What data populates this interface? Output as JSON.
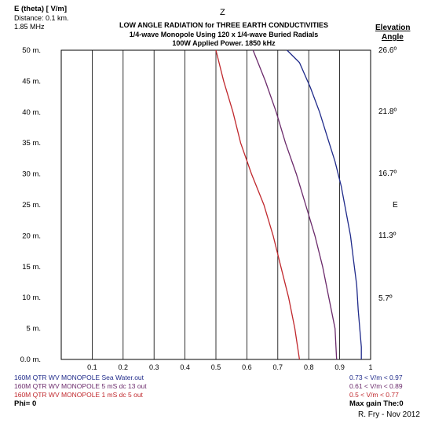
{
  "header": {
    "quantity": "E (theta) [ V/m]",
    "distance": "Distance: 0.1 km.",
    "frequency": "1.85 MHz",
    "z_label": "Z",
    "title_line1": "LOW ANGLE RADIATION for THREE EARTH CONDUCTIVITIES",
    "title_line2": "1/4-wave Monopole Using 120 x 1/4-wave Buried Radials",
    "title_line3": "100W Applied Power. 1850 kHz"
  },
  "elevation": {
    "heading1": "Elevation",
    "heading2": "Angle",
    "labels": [
      "26.6º",
      "21.8º",
      "16.7º",
      "11.3º",
      "5.7º"
    ],
    "e_label": "E"
  },
  "legend": {
    "phi": "Phi= 0",
    "max_gain": "Max gain The:0",
    "items": [
      {
        "name": "160M QTR WV MONOPOLE Sea Water.out",
        "range": "0.73 <  V/m < 0.97",
        "color": "#1f2a8a"
      },
      {
        "name": "160M QTR WV MONOPOLE 5 mS dc 13 out",
        "range": "0.61 <  V/m < 0.89",
        "color": "#6b2a6b"
      },
      {
        "name": "160M QTR WV MONOPOLE 1 mS dc 5 out",
        "range": "0.5 <  V/m < 0.77",
        "color": "#c0282d"
      }
    ]
  },
  "credit": "R. Fry - Nov 2012",
  "chart_data": {
    "type": "line",
    "xlim": [
      0,
      1.0
    ],
    "ylim": [
      0,
      50
    ],
    "x_ticks": [
      "0.1",
      "0.2",
      "0.3",
      "0.4",
      "0.5",
      "0.6",
      "0.7",
      "0.8",
      "0.9",
      "1"
    ],
    "y_ticks": [
      "0.0 m.",
      "5 m.",
      "10 m.",
      "15 m.",
      "20 m.",
      "25 m.",
      "30 m.",
      "35 m.",
      "40 m.",
      "45 m.",
      "50 m."
    ],
    "grid": true,
    "series": [
      {
        "name": "160M QTR WV MONOPOLE Sea Water.out",
        "color": "#1f2a8a",
        "points": [
          [
            0.97,
            0
          ],
          [
            0.97,
            2
          ],
          [
            0.965,
            5
          ],
          [
            0.96,
            8
          ],
          [
            0.955,
            12
          ],
          [
            0.945,
            16
          ],
          [
            0.935,
            20
          ],
          [
            0.92,
            24
          ],
          [
            0.905,
            28
          ],
          [
            0.885,
            32
          ],
          [
            0.86,
            36
          ],
          [
            0.835,
            40
          ],
          [
            0.805,
            44
          ],
          [
            0.77,
            48
          ],
          [
            0.73,
            50
          ]
        ]
      },
      {
        "name": "160M QTR WV MONOPOLE 5 mS dc 13 out",
        "color": "#6b2a6b",
        "points": [
          [
            0.89,
            0
          ],
          [
            0.885,
            5
          ],
          [
            0.865,
            10
          ],
          [
            0.845,
            15
          ],
          [
            0.82,
            20
          ],
          [
            0.79,
            25
          ],
          [
            0.76,
            30
          ],
          [
            0.725,
            35
          ],
          [
            0.695,
            40
          ],
          [
            0.66,
            45
          ],
          [
            0.62,
            50
          ]
        ]
      },
      {
        "name": "160M QTR WV MONOPOLE 1 mS dc 5 out",
        "color": "#c0282d",
        "points": [
          [
            0.77,
            0
          ],
          [
            0.755,
            5
          ],
          [
            0.735,
            10
          ],
          [
            0.71,
            15
          ],
          [
            0.685,
            20
          ],
          [
            0.655,
            25
          ],
          [
            0.615,
            30
          ],
          [
            0.58,
            35
          ],
          [
            0.555,
            40
          ],
          [
            0.525,
            45
          ],
          [
            0.5,
            50
          ]
        ]
      }
    ]
  }
}
